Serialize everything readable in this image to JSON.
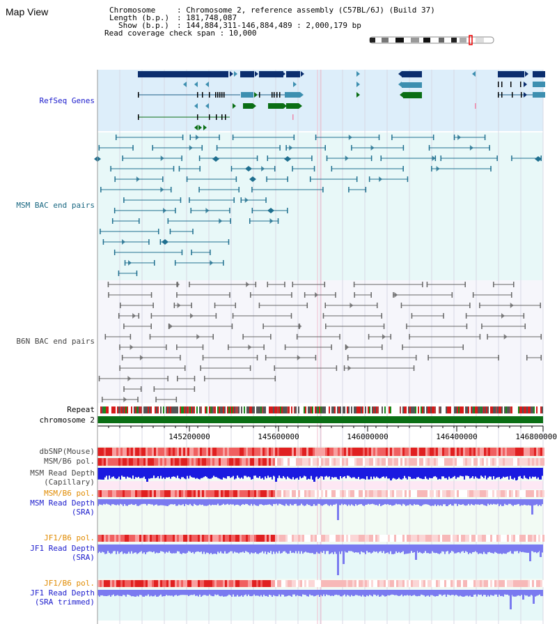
{
  "title": "Map View",
  "info": {
    "chromosome_key": "Chromosome",
    "chromosome_val": ": Chromosome 2, reference assembly (C57BL/6J) (Build 37)",
    "length_key": "Length (b.p.)",
    "length_val": ": 181,748,087",
    "show_key": "Show (b.p.)",
    "show_val": ": 144,884,311-146,884,489 : 2,000,179 bp",
    "coverage": "Read coverage check span : 10,000"
  },
  "tracks": {
    "refseq": "RefSeq Genes",
    "msm_bac": "MSM BAC end pairs",
    "b6n_bac": "B6N BAC end pairs",
    "repeat": "Repeat",
    "chromosome": "chromosome 2",
    "dbsnp": "dbSNP(Mouse)",
    "msm_pol_1": "MSM/B6 pol.",
    "msm_depth_cap_1": "MSM Read Depth",
    "msm_depth_cap_2": "(Capillary)",
    "msm_pol_2": "MSM/B6 pol.",
    "msm_depth_sra_1": "MSM Read Depth",
    "msm_depth_sra_2": "(SRA)",
    "jf1_pol_1": "JF1/B6 pol.",
    "jf1_depth_sra_1": "JF1 Read Depth",
    "jf1_depth_sra_2": "(SRA)",
    "jf1_pol_2": "JF1/B6 pol.",
    "jf1_depth_trim_1": "JF1 Read Depth",
    "jf1_depth_trim_2": "(SRA trimmed)"
  },
  "axis": {
    "ticks": [
      "145200000",
      "145600000",
      "146000000",
      "146400000",
      "146800000"
    ]
  },
  "colors": {
    "refseq_bg": "#ddeefa",
    "msm_bg": "#e8f8f8",
    "b6n_bg": "#f4f4fa",
    "gene_dark": "#0b2e6e",
    "gene_mid": "#3d8fb0",
    "gene_green": "#0a6e14",
    "bac_teal": "#1f6f8f",
    "bac_gray": "#666666",
    "chrom_green": "#0a6e14",
    "depth_blue": "#2222dd",
    "depth_light": "#7777ee"
  }
}
